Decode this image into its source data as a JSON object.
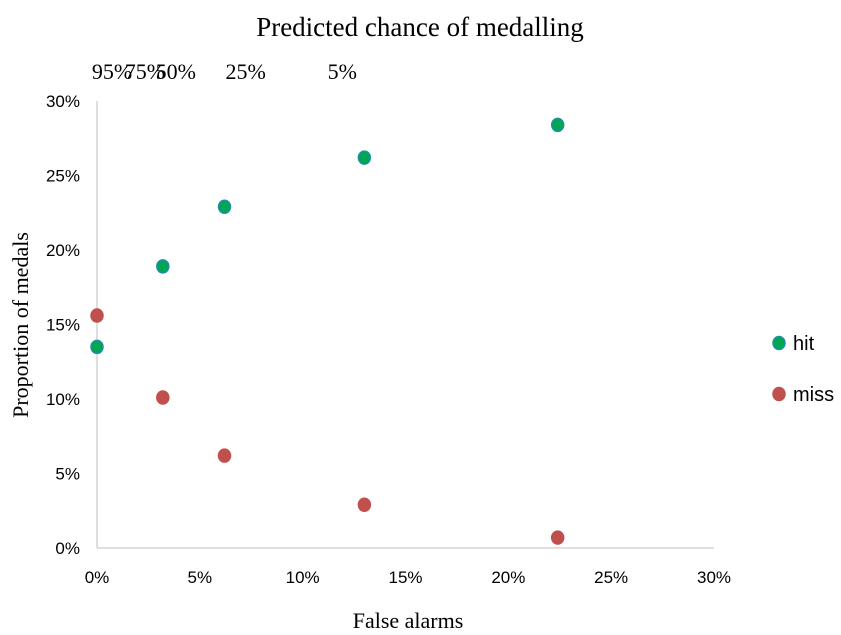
{
  "chart_data": {
    "type": "scatter",
    "title": "Predicted chance of medalling",
    "xlabel": "False alarms",
    "ylabel": "Proportion of medals",
    "xlim": [
      0,
      0.3
    ],
    "ylim": [
      0,
      0.3
    ],
    "x_ticks": [
      0,
      0.05,
      0.1,
      0.15,
      0.2,
      0.25,
      0.3
    ],
    "x_tick_labels": [
      "0%",
      "5%",
      "10%",
      "15%",
      "20%",
      "25%",
      "30%"
    ],
    "y_ticks": [
      0,
      0.05,
      0.1,
      0.15,
      0.2,
      0.25,
      0.3
    ],
    "y_tick_labels": [
      "0%",
      "5%",
      "10%",
      "15%",
      "20%",
      "25%",
      "30%"
    ],
    "top_annotations": [
      {
        "x": 0.0,
        "label": "95%"
      },
      {
        "x": 0.016,
        "label": "75%"
      },
      {
        "x": 0.031,
        "label": "50%"
      },
      {
        "x": 0.065,
        "label": "25%"
      },
      {
        "x": 0.112,
        "label": "5%"
      }
    ],
    "grid": false,
    "legend_position": "right",
    "series": [
      {
        "name": "hit",
        "color": "#00A651",
        "edge_color": "#1F8FA8",
        "points": [
          {
            "x": 0.0,
            "y": 0.135
          },
          {
            "x": 0.032,
            "y": 0.189
          },
          {
            "x": 0.062,
            "y": 0.229
          },
          {
            "x": 0.13,
            "y": 0.262
          },
          {
            "x": 0.224,
            "y": 0.284
          }
        ]
      },
      {
        "name": "miss",
        "color": "#C0504D",
        "edge_color": "#C0504D",
        "points": [
          {
            "x": 0.0,
            "y": 0.156
          },
          {
            "x": 0.032,
            "y": 0.101
          },
          {
            "x": 0.062,
            "y": 0.062
          },
          {
            "x": 0.13,
            "y": 0.029
          },
          {
            "x": 0.224,
            "y": 0.007
          }
        ]
      }
    ]
  }
}
